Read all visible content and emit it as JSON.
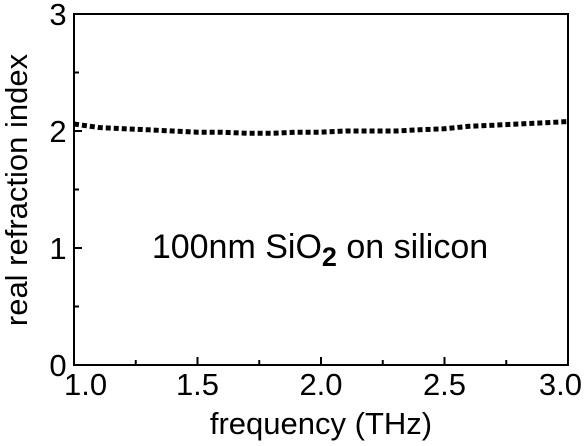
{
  "chart_data": {
    "type": "line",
    "title": "",
    "xlabel": "frequency (THz)",
    "ylabel": "real refraction index",
    "xlim": [
      1.0,
      3.0
    ],
    "ylim": [
      0,
      3
    ],
    "x_ticks": [
      "1.0",
      "1.5",
      "2.0",
      "2.5",
      "3.0"
    ],
    "y_ticks": [
      "0",
      "1",
      "2",
      "3"
    ],
    "grid": false,
    "legend": "none",
    "line_style": "dotted",
    "line_color": "#000000",
    "annotation": {
      "text_main": "100nm SiO",
      "text_sub": "2",
      "text_rest": " on silicon"
    },
    "series": [
      {
        "x": [
          1.0,
          1.1,
          1.2,
          1.3,
          1.4,
          1.5,
          1.6,
          1.7,
          1.8,
          1.9,
          2.0,
          2.1,
          2.2,
          2.3,
          2.4,
          2.5,
          2.6,
          2.7,
          2.8,
          2.9,
          3.0
        ],
        "y": [
          2.06,
          2.03,
          2.02,
          2.01,
          2.0,
          1.99,
          1.99,
          1.98,
          1.98,
          1.99,
          1.99,
          2.0,
          2.0,
          2.0,
          2.01,
          2.02,
          2.04,
          2.05,
          2.06,
          2.07,
          2.08
        ]
      }
    ]
  }
}
